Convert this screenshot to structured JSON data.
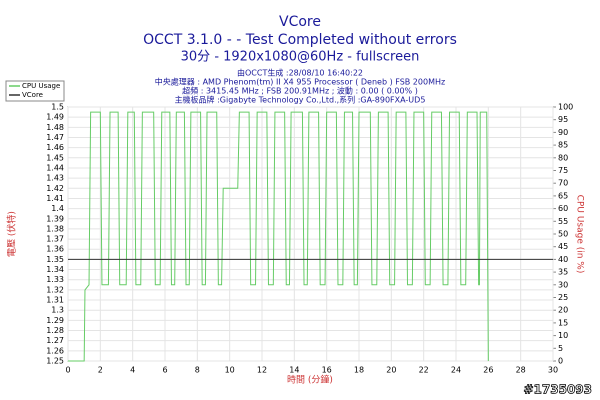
{
  "chart_data": {
    "type": "line",
    "title": "VCore",
    "subtitle": [
      "OCCT 3.1.0 -  - Test Completed without errors",
      "30分 - 1920x1080@60Hz - fullscreen"
    ],
    "info": [
      "由OCCT生成 :28/08/10 16:40:22",
      "中央處理器 : AMD Phenom(tm) II X4 955 Processor ( Deneb ) FSB 200MHz",
      "超頻 : 3415.45 MHz ; FSB 200.91MHz ; 波動 : 0.00 ( 0.00% )",
      "主機板品牌 :Gigabyte Technology Co.,Ltd.,系列 :GA-890FXA-UD5"
    ],
    "xlabel": "時間 (分鐘)",
    "ylabel": "電壓 (伏特)",
    "y2label": "CPU Usage (in %)",
    "watermark": "#1735093",
    "xlim": [
      0,
      30
    ],
    "xticks": [
      0,
      2,
      4,
      6,
      8,
      10,
      12,
      14,
      16,
      18,
      20,
      22,
      24,
      26,
      28,
      30
    ],
    "ylim": [
      1.25,
      1.5
    ],
    "yticks": [
      1.25,
      1.26,
      1.27,
      1.28,
      1.29,
      1.3,
      1.31,
      1.32,
      1.33,
      1.34,
      1.35,
      1.36,
      1.37,
      1.38,
      1.39,
      1.4,
      1.41,
      1.42,
      1.43,
      1.44,
      1.45,
      1.46,
      1.47,
      1.48,
      1.49,
      1.5
    ],
    "y2lim": [
      0,
      100
    ],
    "y2ticks": [
      0,
      5,
      10,
      15,
      20,
      25,
      30,
      35,
      40,
      45,
      50,
      55,
      60,
      65,
      70,
      75,
      80,
      85,
      90,
      95,
      100
    ],
    "grid": true,
    "legend": "top-left",
    "series": [
      {
        "name": "CPU Usage",
        "color": "#66cc66",
        "axis": "y2",
        "x": [
          0,
          1.0,
          1.05,
          1.3,
          1.4,
          2.0,
          2.1,
          2.5,
          2.6,
          3.1,
          3.2,
          3.6,
          3.7,
          4.1,
          4.2,
          4.5,
          4.6,
          5.3,
          5.4,
          5.7,
          5.8,
          6.3,
          6.4,
          6.6,
          6.7,
          7.2,
          7.3,
          7.5,
          7.6,
          8.2,
          8.3,
          8.5,
          8.6,
          9.2,
          9.3,
          9.5,
          9.6,
          10.5,
          10.6,
          11.2,
          11.3,
          11.6,
          11.7,
          12.3,
          12.4,
          12.7,
          12.8,
          13.4,
          13.5,
          13.7,
          13.8,
          14.5,
          14.6,
          14.8,
          14.9,
          15.5,
          15.6,
          15.9,
          16.0,
          16.6,
          16.7,
          17.0,
          17.1,
          17.6,
          17.7,
          17.9,
          18.0,
          18.7,
          18.8,
          19.1,
          19.2,
          19.8,
          19.9,
          20.2,
          20.3,
          20.9,
          21.0,
          21.3,
          21.4,
          22.0,
          22.1,
          22.4,
          22.5,
          23.1,
          23.2,
          23.5,
          23.6,
          24.2,
          24.3,
          24.6,
          24.7,
          25.3,
          25.4,
          25.45,
          25.5,
          25.9,
          26.0
        ],
        "values": [
          0,
          0,
          28,
          30,
          98,
          98,
          30,
          30,
          98,
          98,
          30,
          30,
          98,
          98,
          30,
          30,
          98,
          98,
          30,
          30,
          98,
          98,
          30,
          30,
          98,
          98,
          30,
          30,
          98,
          98,
          30,
          30,
          98,
          98,
          30,
          30,
          68,
          68,
          98,
          98,
          30,
          30,
          98,
          98,
          30,
          30,
          98,
          98,
          30,
          30,
          98,
          98,
          30,
          30,
          98,
          98,
          30,
          30,
          98,
          98,
          30,
          30,
          98,
          98,
          30,
          30,
          98,
          98,
          30,
          30,
          98,
          98,
          30,
          30,
          98,
          98,
          30,
          30,
          98,
          98,
          30,
          30,
          98,
          98,
          30,
          30,
          98,
          98,
          30,
          30,
          98,
          98,
          30,
          30,
          98,
          98,
          0
        ]
      },
      {
        "name": "VCore",
        "color": "#333333",
        "x": [
          0,
          30
        ],
        "values": [
          1.35,
          1.35
        ]
      }
    ]
  }
}
